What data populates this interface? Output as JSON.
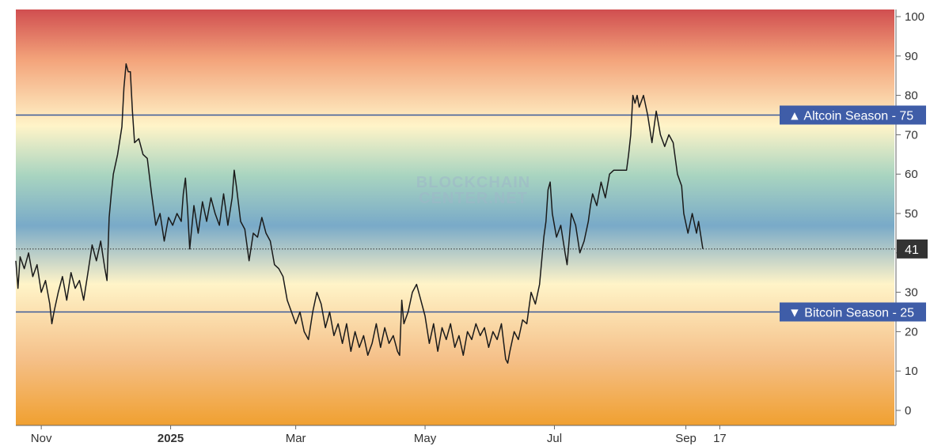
{
  "watermark": {
    "line1": "BLOCKCHAIN",
    "line2": "CENTER.NET"
  },
  "colors": {
    "line": "#1a1a1a",
    "threshold": "#3b5a99",
    "label_bg": "#3f5da8",
    "current_bg": "#333333",
    "axis": "#666666",
    "gradient": [
      "#d04e50",
      "#f3a37a",
      "#fff4c8",
      "#a8d4c0",
      "#79aac8",
      "#fff4c8",
      "#f5c089",
      "#f0a030"
    ]
  },
  "chart_data": {
    "type": "line",
    "title": "",
    "xlabel": "",
    "ylabel": "",
    "ylim": [
      0,
      100
    ],
    "y_ticks": [
      "0",
      "10",
      "20",
      "30",
      "40",
      "50",
      "60",
      "70",
      "80",
      "90",
      "100"
    ],
    "x_ticks": [
      {
        "label": "Nov",
        "date": "2024-11-01",
        "bold": false
      },
      {
        "label": "2025",
        "date": "2025-01-01",
        "bold": true
      },
      {
        "label": "Mar",
        "date": "2025-03-01",
        "bold": false
      },
      {
        "label": "May",
        "date": "2025-05-01",
        "bold": false
      },
      {
        "label": "Jul",
        "date": "2025-07-01",
        "bold": false
      },
      {
        "label": "Sep",
        "date": "2025-09-01",
        "bold": false
      },
      {
        "label": "17",
        "date": "2025-09-17",
        "bold": false
      }
    ],
    "grid": false,
    "thresholds": [
      {
        "name": "Altcoin Season",
        "value": 75,
        "label": "Altcoin Season",
        "value_label": "75",
        "arrow": "▲"
      },
      {
        "name": "Bitcoin Season",
        "value": 25,
        "label": "Bitcoin Season",
        "value_label": "25",
        "arrow": "▼"
      }
    ],
    "current": {
      "value": 41,
      "label": "41"
    },
    "series": [
      {
        "points": [
          [
            "2024-10-20",
            38
          ],
          [
            "2024-10-21",
            31
          ],
          [
            "2024-10-22",
            39
          ],
          [
            "2024-10-24",
            36
          ],
          [
            "2024-10-26",
            40
          ],
          [
            "2024-10-28",
            34
          ],
          [
            "2024-10-30",
            37
          ],
          [
            "2024-11-01",
            30
          ],
          [
            "2024-11-03",
            33
          ],
          [
            "2024-11-05",
            27
          ],
          [
            "2024-11-06",
            22
          ],
          [
            "2024-11-07",
            25
          ],
          [
            "2024-11-09",
            30
          ],
          [
            "2024-11-11",
            34
          ],
          [
            "2024-11-13",
            28
          ],
          [
            "2024-11-15",
            35
          ],
          [
            "2024-11-17",
            31
          ],
          [
            "2024-11-19",
            33
          ],
          [
            "2024-11-21",
            28
          ],
          [
            "2024-11-23",
            35
          ],
          [
            "2024-11-25",
            42
          ],
          [
            "2024-11-27",
            38
          ],
          [
            "2024-11-29",
            43
          ],
          [
            "2024-12-01",
            36
          ],
          [
            "2024-12-02",
            33
          ],
          [
            "2024-12-03",
            49
          ],
          [
            "2024-12-04",
            55
          ],
          [
            "2024-12-05",
            60
          ],
          [
            "2024-12-07",
            65
          ],
          [
            "2024-12-09",
            72
          ],
          [
            "2024-12-10",
            82
          ],
          [
            "2024-12-11",
            88
          ],
          [
            "2024-12-12",
            86
          ],
          [
            "2024-12-13",
            86
          ],
          [
            "2024-12-14",
            76
          ],
          [
            "2024-12-15",
            68
          ],
          [
            "2024-12-17",
            69
          ],
          [
            "2024-12-19",
            65
          ],
          [
            "2024-12-21",
            64
          ],
          [
            "2024-12-23",
            55
          ],
          [
            "2024-12-25",
            47
          ],
          [
            "2024-12-27",
            50
          ],
          [
            "2024-12-29",
            43
          ],
          [
            "2024-12-31",
            49
          ],
          [
            "2025-01-02",
            47
          ],
          [
            "2025-01-04",
            50
          ],
          [
            "2025-01-06",
            48
          ],
          [
            "2025-01-07",
            55
          ],
          [
            "2025-01-08",
            59
          ],
          [
            "2025-01-09",
            51
          ],
          [
            "2025-01-10",
            41
          ],
          [
            "2025-01-12",
            52
          ],
          [
            "2025-01-14",
            45
          ],
          [
            "2025-01-16",
            53
          ],
          [
            "2025-01-18",
            48
          ],
          [
            "2025-01-20",
            54
          ],
          [
            "2025-01-22",
            50
          ],
          [
            "2025-01-24",
            47
          ],
          [
            "2025-01-26",
            55
          ],
          [
            "2025-01-28",
            47
          ],
          [
            "2025-01-30",
            54
          ],
          [
            "2025-01-31",
            61
          ],
          [
            "2025-02-01",
            57
          ],
          [
            "2025-02-03",
            48
          ],
          [
            "2025-02-05",
            46
          ],
          [
            "2025-02-07",
            38
          ],
          [
            "2025-02-09",
            45
          ],
          [
            "2025-02-11",
            44
          ],
          [
            "2025-02-13",
            49
          ],
          [
            "2025-02-15",
            45
          ],
          [
            "2025-02-17",
            43
          ],
          [
            "2025-02-19",
            37
          ],
          [
            "2025-02-21",
            36
          ],
          [
            "2025-02-23",
            34
          ],
          [
            "2025-02-25",
            28
          ],
          [
            "2025-02-27",
            25
          ],
          [
            "2025-03-01",
            22
          ],
          [
            "2025-03-03",
            25
          ],
          [
            "2025-03-05",
            20
          ],
          [
            "2025-03-07",
            18
          ],
          [
            "2025-03-09",
            25
          ],
          [
            "2025-03-11",
            30
          ],
          [
            "2025-03-13",
            27
          ],
          [
            "2025-03-15",
            21
          ],
          [
            "2025-03-17",
            25
          ],
          [
            "2025-03-19",
            19
          ],
          [
            "2025-03-21",
            22
          ],
          [
            "2025-03-23",
            17
          ],
          [
            "2025-03-25",
            22
          ],
          [
            "2025-03-27",
            15
          ],
          [
            "2025-03-29",
            20
          ],
          [
            "2025-03-31",
            16
          ],
          [
            "2025-04-02",
            19
          ],
          [
            "2025-04-04",
            14
          ],
          [
            "2025-04-06",
            17
          ],
          [
            "2025-04-08",
            22
          ],
          [
            "2025-04-10",
            16
          ],
          [
            "2025-04-12",
            21
          ],
          [
            "2025-04-14",
            17
          ],
          [
            "2025-04-16",
            19
          ],
          [
            "2025-04-18",
            15
          ],
          [
            "2025-04-19",
            14
          ],
          [
            "2025-04-20",
            28
          ],
          [
            "2025-04-21",
            22
          ],
          [
            "2025-04-23",
            25
          ],
          [
            "2025-04-25",
            30
          ],
          [
            "2025-04-27",
            32
          ],
          [
            "2025-04-29",
            28
          ],
          [
            "2025-05-01",
            24
          ],
          [
            "2025-05-03",
            17
          ],
          [
            "2025-05-05",
            22
          ],
          [
            "2025-05-07",
            15
          ],
          [
            "2025-05-09",
            21
          ],
          [
            "2025-05-11",
            18
          ],
          [
            "2025-05-13",
            22
          ],
          [
            "2025-05-15",
            16
          ],
          [
            "2025-05-17",
            19
          ],
          [
            "2025-05-19",
            14
          ],
          [
            "2025-05-21",
            20
          ],
          [
            "2025-05-23",
            18
          ],
          [
            "2025-05-25",
            22
          ],
          [
            "2025-05-27",
            19
          ],
          [
            "2025-05-29",
            21
          ],
          [
            "2025-05-31",
            16
          ],
          [
            "2025-06-02",
            20
          ],
          [
            "2025-06-04",
            18
          ],
          [
            "2025-06-06",
            22
          ],
          [
            "2025-06-08",
            13
          ],
          [
            "2025-06-09",
            12
          ],
          [
            "2025-06-10",
            15
          ],
          [
            "2025-06-12",
            20
          ],
          [
            "2025-06-14",
            18
          ],
          [
            "2025-06-16",
            23
          ],
          [
            "2025-06-18",
            22
          ],
          [
            "2025-06-20",
            30
          ],
          [
            "2025-06-22",
            27
          ],
          [
            "2025-06-24",
            32
          ],
          [
            "2025-06-25",
            38
          ],
          [
            "2025-06-26",
            44
          ],
          [
            "2025-06-27",
            48
          ],
          [
            "2025-06-28",
            56
          ],
          [
            "2025-06-29",
            58
          ],
          [
            "2025-06-30",
            50
          ],
          [
            "2025-07-02",
            44
          ],
          [
            "2025-07-04",
            47
          ],
          [
            "2025-07-06",
            40
          ],
          [
            "2025-07-07",
            37
          ],
          [
            "2025-07-09",
            50
          ],
          [
            "2025-07-11",
            47
          ],
          [
            "2025-07-13",
            40
          ],
          [
            "2025-07-15",
            43
          ],
          [
            "2025-07-17",
            48
          ],
          [
            "2025-07-18",
            52
          ],
          [
            "2025-07-19",
            55
          ],
          [
            "2025-07-21",
            52
          ],
          [
            "2025-07-23",
            58
          ],
          [
            "2025-07-25",
            54
          ],
          [
            "2025-07-27",
            60
          ],
          [
            "2025-07-29",
            61
          ],
          [
            "2025-07-31",
            61
          ],
          [
            "2025-08-02",
            61
          ],
          [
            "2025-08-04",
            61
          ],
          [
            "2025-08-05",
            65
          ],
          [
            "2025-08-06",
            70
          ],
          [
            "2025-08-07",
            80
          ],
          [
            "2025-08-08",
            78
          ],
          [
            "2025-08-09",
            80
          ],
          [
            "2025-08-10",
            77
          ],
          [
            "2025-08-12",
            80
          ],
          [
            "2025-08-14",
            75
          ],
          [
            "2025-08-16",
            68
          ],
          [
            "2025-08-18",
            76
          ],
          [
            "2025-08-20",
            70
          ],
          [
            "2025-08-22",
            67
          ],
          [
            "2025-08-24",
            70
          ],
          [
            "2025-08-26",
            68
          ],
          [
            "2025-08-28",
            60
          ],
          [
            "2025-08-30",
            57
          ],
          [
            "2025-08-31",
            50
          ],
          [
            "2025-09-02",
            45
          ],
          [
            "2025-09-04",
            50
          ],
          [
            "2025-09-06",
            45
          ],
          [
            "2025-09-07",
            48
          ],
          [
            "2025-09-09",
            41
          ]
        ]
      }
    ]
  }
}
